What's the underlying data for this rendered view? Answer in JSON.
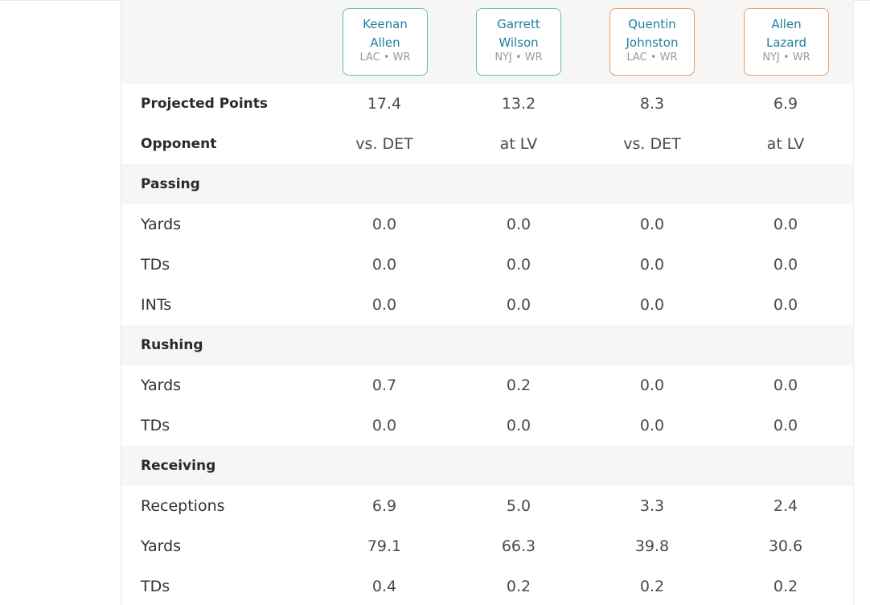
{
  "players": [
    {
      "first": "Keenan",
      "last": "Allen",
      "team": "LAC",
      "pos": "WR",
      "meta": "LAC • WR",
      "color": "#5cc98a"
    },
    {
      "first": "Garrett",
      "last": "Wilson",
      "team": "NYJ",
      "pos": "WR",
      "meta": "NYJ • WR",
      "color": "#5cc98a"
    },
    {
      "first": "Quentin",
      "last": "Johnston",
      "team": "LAC",
      "pos": "WR",
      "meta": "LAC • WR",
      "color": "#ec9b6a"
    },
    {
      "first": "Allen",
      "last": "Lazard",
      "team": "NYJ",
      "pos": "WR",
      "meta": "NYJ • WR",
      "color": "#ec9b6a"
    }
  ],
  "rows": {
    "projected_points": {
      "label": "Projected Points",
      "values": [
        "17.4",
        "13.2",
        "8.3",
        "6.9"
      ]
    },
    "opponent": {
      "label": "Opponent",
      "values": [
        "vs. DET",
        "at LV",
        "vs. DET",
        "at LV"
      ]
    },
    "passing_header": {
      "label": "Passing"
    },
    "passing_yards": {
      "label": "Yards",
      "values": [
        "0.0",
        "0.0",
        "0.0",
        "0.0"
      ]
    },
    "passing_tds": {
      "label": "TDs",
      "values": [
        "0.0",
        "0.0",
        "0.0",
        "0.0"
      ]
    },
    "passing_ints": {
      "label": "INTs",
      "values": [
        "0.0",
        "0.0",
        "0.0",
        "0.0"
      ]
    },
    "rushing_header": {
      "label": "Rushing"
    },
    "rushing_yards": {
      "label": "Yards",
      "values": [
        "0.7",
        "0.2",
        "0.0",
        "0.0"
      ]
    },
    "rushing_tds": {
      "label": "TDs",
      "values": [
        "0.0",
        "0.0",
        "0.0",
        "0.0"
      ]
    },
    "receiving_header": {
      "label": "Receiving"
    },
    "receptions": {
      "label": "Receptions",
      "values": [
        "6.9",
        "5.0",
        "3.3",
        "2.4"
      ]
    },
    "receiving_yards": {
      "label": "Yards",
      "values": [
        "79.1",
        "66.3",
        "39.8",
        "30.6"
      ]
    },
    "receiving_tds": {
      "label": "TDs",
      "values": [
        "0.4",
        "0.2",
        "0.2",
        "0.2"
      ]
    }
  }
}
